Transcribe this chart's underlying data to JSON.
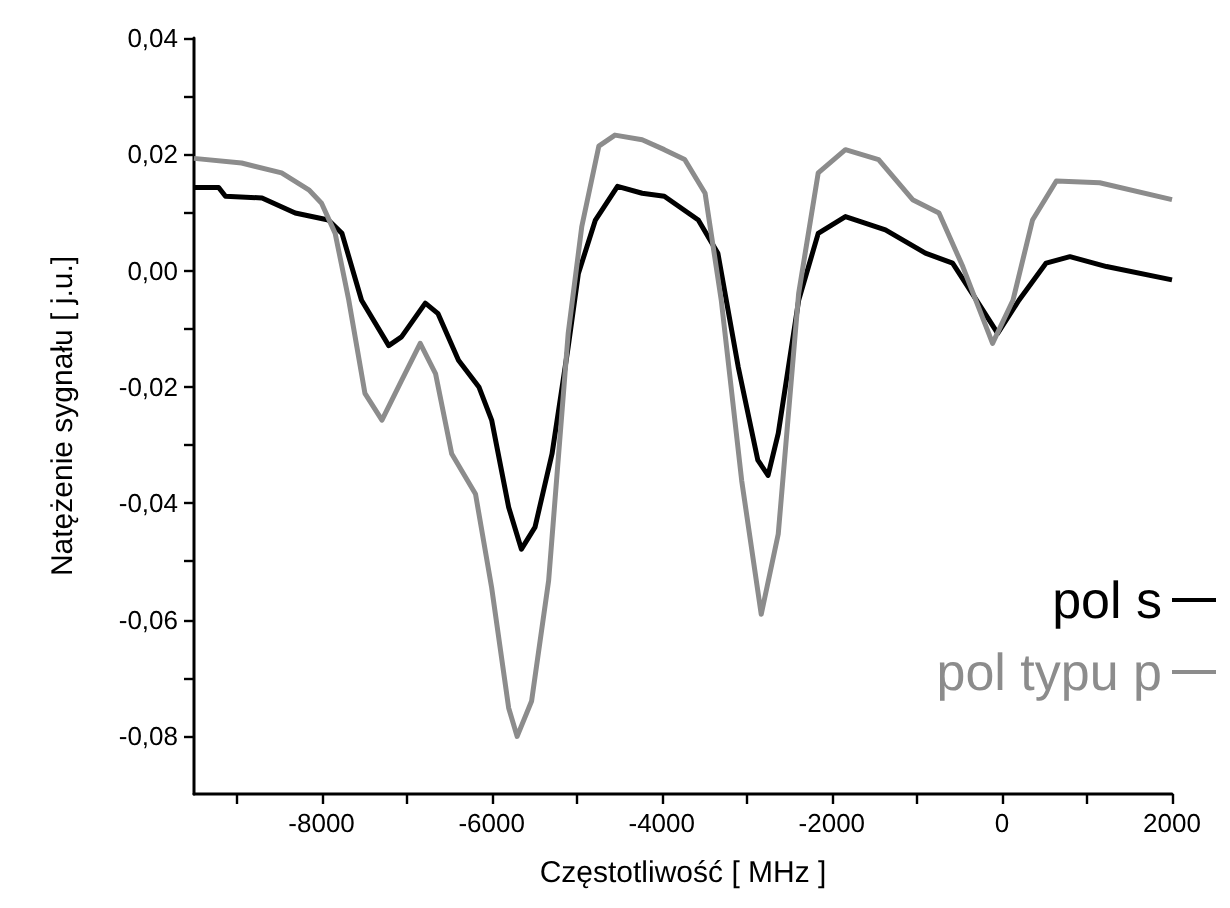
{
  "chart_data": {
    "type": "line",
    "xlabel": "Częstotliwość [ MHz ]",
    "ylabel": "Natężenie sygnału [ j.u.]",
    "xlim": [
      -9500,
      2000
    ],
    "ylim": [
      -0.09,
      0.04
    ],
    "xticks": [
      {
        "value": -9000,
        "label": null
      },
      -8000,
      {
        "value": -7000,
        "label": null
      },
      -6000,
      {
        "value": -5000,
        "label": null
      },
      -4000,
      {
        "value": -3000,
        "label": null
      },
      -2000,
      {
        "value": -1000,
        "label": null
      },
      0,
      {
        "value": 1000,
        "label": null
      },
      2000
    ],
    "yticks": [
      {
        "value": 0.04,
        "label": "0,04"
      },
      {
        "value": 0.03,
        "label": null
      },
      {
        "value": 0.02,
        "label": "0,02"
      },
      {
        "value": 0.01,
        "label": null
      },
      {
        "value": 0,
        "label": "0,00"
      },
      {
        "value": -0.01,
        "label": null
      },
      {
        "value": -0.02,
        "label": "-0,02"
      },
      {
        "value": -0.03,
        "label": null
      },
      {
        "value": -0.04,
        "label": "-0,04"
      },
      {
        "value": -0.05,
        "label": null
      },
      {
        "value": -0.06,
        "label": "-0,06"
      },
      {
        "value": -0.07,
        "label": null
      },
      {
        "value": -0.08,
        "label": "-0,08"
      }
    ],
    "grid": false,
    "legend": "bottom right",
    "marker": "none",
    "line_style": "solid",
    "series": [
      {
        "name": "pol s",
        "color": "#000000",
        "x": [
          -9500,
          -9210,
          -9130,
          -8700,
          -8310,
          -7920,
          -7760,
          -7530,
          -7210,
          -7060,
          -6780,
          -6630,
          -6390,
          -6150,
          -6000,
          -5800,
          -5650,
          -5490,
          -5290,
          -5100,
          -4980,
          -4780,
          -4520,
          -4230,
          -3970,
          -3570,
          -3340,
          -3100,
          -2870,
          -2750,
          -2630,
          -2390,
          -2160,
          -1840,
          -1370,
          -900,
          -580,
          -350,
          -50,
          200,
          520,
          800,
          1230,
          2000
        ],
        "values": [
          0.0143,
          0.0143,
          0.0128,
          0.0125,
          0.0099,
          0.0087,
          0.0064,
          -0.0051,
          -0.0129,
          -0.0114,
          -0.0056,
          -0.0074,
          -0.0154,
          -0.02,
          -0.0257,
          -0.0407,
          -0.0479,
          -0.0441,
          -0.0315,
          -0.0131,
          -0.0005,
          0.0087,
          0.0145,
          0.0133,
          0.0128,
          0.0087,
          0.003,
          -0.0166,
          -0.0326,
          -0.0352,
          -0.028,
          -0.0051,
          0.0064,
          0.0093,
          0.007,
          0.003,
          0.0013,
          -0.0039,
          -0.0108,
          -0.0051,
          0.0013,
          0.0024,
          0.0007,
          -0.0016
        ]
      },
      {
        "name": "pol typu p",
        "color": "#8c8c8c",
        "x": [
          -9500,
          -8940,
          -8470,
          -8150,
          -8000,
          -7840,
          -7680,
          -7490,
          -7290,
          -7060,
          -6840,
          -6660,
          -6470,
          -6190,
          -6000,
          -5800,
          -5700,
          -5530,
          -5330,
          -5100,
          -4940,
          -4740,
          -4550,
          -4230,
          -3970,
          -3730,
          -3490,
          -3300,
          -3060,
          -2830,
          -2630,
          -2390,
          -2160,
          -1840,
          -1450,
          -1050,
          -740,
          -460,
          -110,
          130,
          360,
          640,
          1150,
          2000
        ],
        "values": [
          0.0193,
          0.0185,
          0.0168,
          0.0139,
          0.0116,
          0.0064,
          -0.0051,
          -0.0211,
          -0.0257,
          -0.0189,
          -0.0125,
          -0.0177,
          -0.0315,
          -0.0384,
          -0.0545,
          -0.0752,
          -0.0801,
          -0.074,
          -0.0533,
          -0.0108,
          0.0076,
          0.0214,
          0.0233,
          0.0225,
          0.0208,
          0.0191,
          0.0133,
          -0.0051,
          -0.0361,
          -0.0591,
          -0.0453,
          -0.0039,
          0.0168,
          0.0208,
          0.0191,
          0.0122,
          0.0099,
          0.0007,
          -0.0125,
          -0.0051,
          0.0087,
          0.0154,
          0.0151,
          0.0122
        ]
      }
    ]
  }
}
